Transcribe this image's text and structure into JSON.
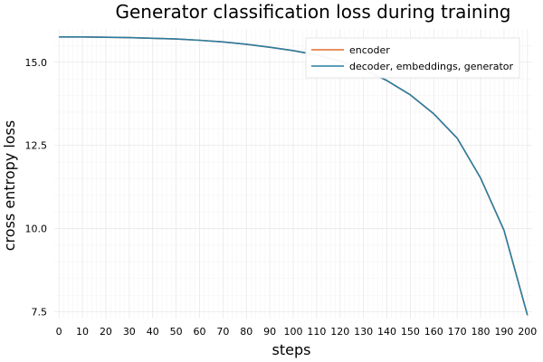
{
  "chart_data": {
    "type": "line",
    "title": "Generator classification loss during training",
    "xlabel": "steps",
    "ylabel": "cross entropy loss",
    "xlim": [
      -2,
      202
    ],
    "ylim": [
      7.3,
      16.0
    ],
    "xticks": [
      0,
      10,
      20,
      30,
      40,
      50,
      60,
      70,
      80,
      90,
      100,
      110,
      120,
      130,
      140,
      150,
      160,
      170,
      180,
      190,
      200
    ],
    "yticks": [
      7.5,
      10.0,
      12.5,
      15.0
    ],
    "ytick_labels": [
      "7.5",
      "10.0",
      "12.5",
      "15.0"
    ],
    "grid": true,
    "legend_position": "top-right",
    "x": [
      0,
      10,
      20,
      30,
      40,
      50,
      60,
      70,
      80,
      90,
      100,
      110,
      120,
      130,
      140,
      150,
      160,
      170,
      180,
      190,
      200
    ],
    "series": [
      {
        "name": "encoder",
        "color": "#e26f2f",
        "values": [
          15.76,
          15.76,
          15.75,
          15.74,
          15.72,
          15.7,
          15.66,
          15.61,
          15.54,
          15.45,
          15.35,
          15.22,
          15.04,
          14.78,
          14.45,
          14.02,
          13.45,
          12.72,
          11.52,
          9.95,
          7.4
        ]
      },
      {
        "name": "decoder, embeddings, generator",
        "color": "#2a7da1",
        "values": [
          15.76,
          15.76,
          15.75,
          15.74,
          15.72,
          15.7,
          15.66,
          15.61,
          15.54,
          15.45,
          15.35,
          15.22,
          15.04,
          14.78,
          14.45,
          14.02,
          13.45,
          12.72,
          11.52,
          9.95,
          7.4
        ]
      }
    ]
  }
}
